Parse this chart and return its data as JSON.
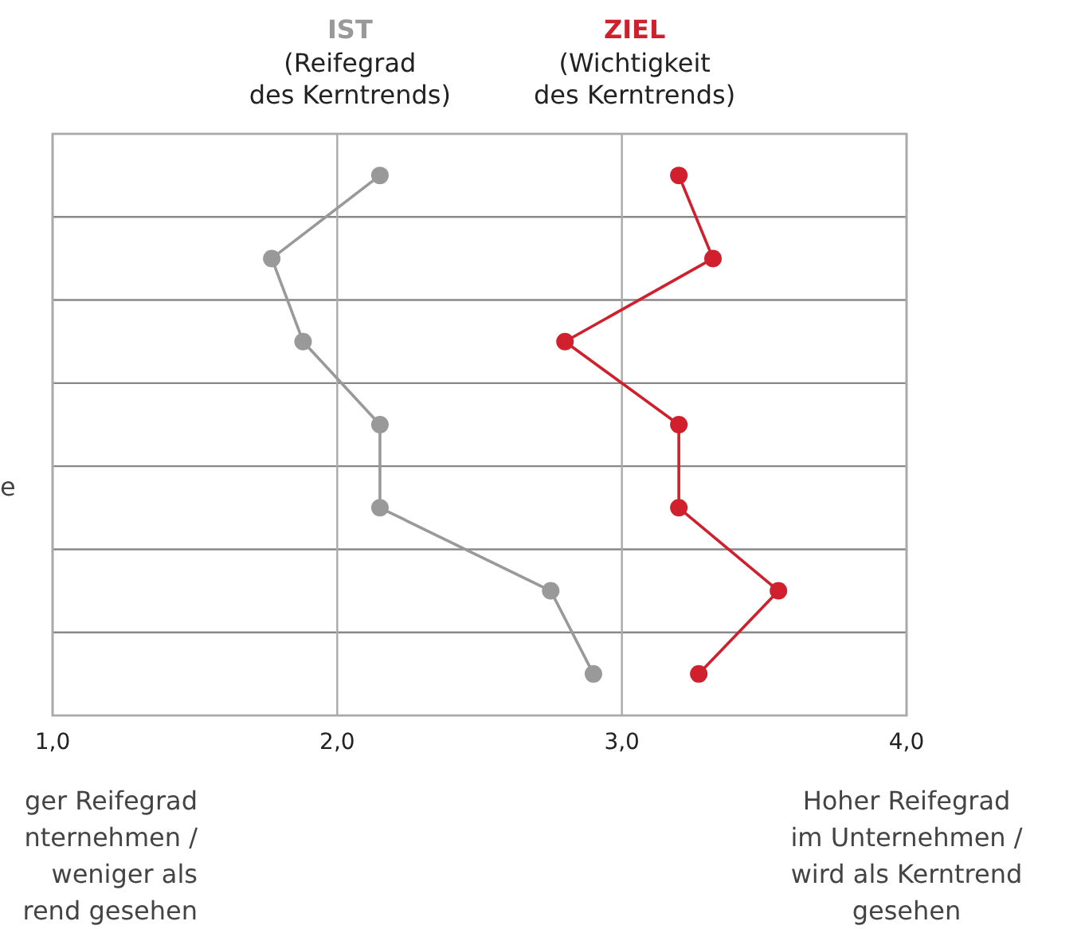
{
  "chart_data": {
    "type": "line",
    "orientation": "horizontal",
    "categories": [
      null,
      null,
      null,
      null,
      null,
      null,
      null
    ],
    "xlim": [
      1,
      4
    ],
    "xticks": [
      {
        "value": 1,
        "label": "1,0"
      },
      {
        "value": 2,
        "label": "2,0"
      },
      {
        "value": 3,
        "label": "3,0"
      },
      {
        "value": 4,
        "label": "4,0"
      }
    ],
    "series": [
      {
        "name": "IST",
        "color": "#999999",
        "values": [
          2.15,
          1.77,
          1.88,
          2.15,
          2.15,
          2.75,
          2.9
        ]
      },
      {
        "name": "ZIEL",
        "color": "#d0202e",
        "values": [
          3.2,
          3.32,
          2.8,
          3.2,
          3.2,
          3.55,
          3.27
        ]
      }
    ],
    "annotations": [
      "ger Reifegrad\nnternehmen /\nweniger als\nrend gesehen",
      "Hoher Reifegrad\nim Unternehmen /\nwird als Kerntrend\ngesehen",
      "(Reifegrad\ndes Kerntrends)",
      "(Wichtigkeit\ndes Kerntrends)",
      "e"
    ],
    "grid": true,
    "legend": "top",
    "marker": "circle",
    "line_style": "solid"
  }
}
